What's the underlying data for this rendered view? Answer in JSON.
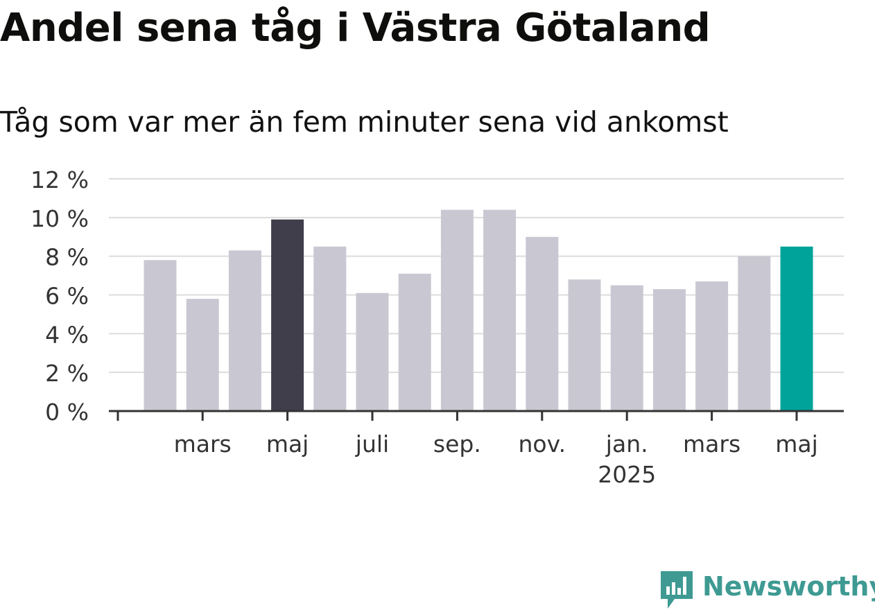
{
  "title": "Andel sena tåg i Västra Götaland",
  "subtitle": "Tåg som var mer än fem minuter sena vid ankomst",
  "brand": "Newsworthy",
  "colors": {
    "default": "#c9c8d2",
    "highlight_past": "#403e4b",
    "highlight_latest": "#00a39a",
    "grid": "#dcdcdc",
    "axis": "#333333",
    "brand": "#3e9a92"
  },
  "chart_data": {
    "type": "bar",
    "x": [
      "2024-02",
      "2024-03",
      "2024-04",
      "2024-05",
      "2024-06",
      "2024-07",
      "2024-08",
      "2024-09",
      "2024-10",
      "2024-11",
      "2024-12",
      "2025-01",
      "2025-02",
      "2025-03",
      "2025-04",
      "2025-05"
    ],
    "values": [
      7.8,
      5.8,
      8.3,
      9.9,
      8.5,
      6.1,
      7.1,
      10.4,
      10.4,
      9.0,
      6.8,
      6.5,
      6.3,
      6.7,
      8.0,
      8.5
    ],
    "highlight": {
      "2024-05": "highlight_past",
      "2025-05": "highlight_latest"
    },
    "ylim": [
      0,
      12
    ],
    "yticks": [
      0,
      2,
      4,
      6,
      8,
      10,
      12
    ],
    "ytick_labels": [
      "0 %",
      "2 %",
      "4 %",
      "6 %",
      "8 %",
      "10 %",
      "12 %"
    ],
    "xticks": [
      {
        "x": "2024-03",
        "label": "mars"
      },
      {
        "x": "2024-05",
        "label": "maj"
      },
      {
        "x": "2024-07",
        "label": "juli"
      },
      {
        "x": "2024-09",
        "label": "sep."
      },
      {
        "x": "2024-11",
        "label": "nov."
      },
      {
        "x": "2025-01",
        "label": "jan.",
        "sublabel": "2025"
      },
      {
        "x": "2025-03",
        "label": "mars"
      },
      {
        "x": "2025-05",
        "label": "maj"
      }
    ],
    "grid": true,
    "xlabel": "",
    "ylabel": ""
  }
}
